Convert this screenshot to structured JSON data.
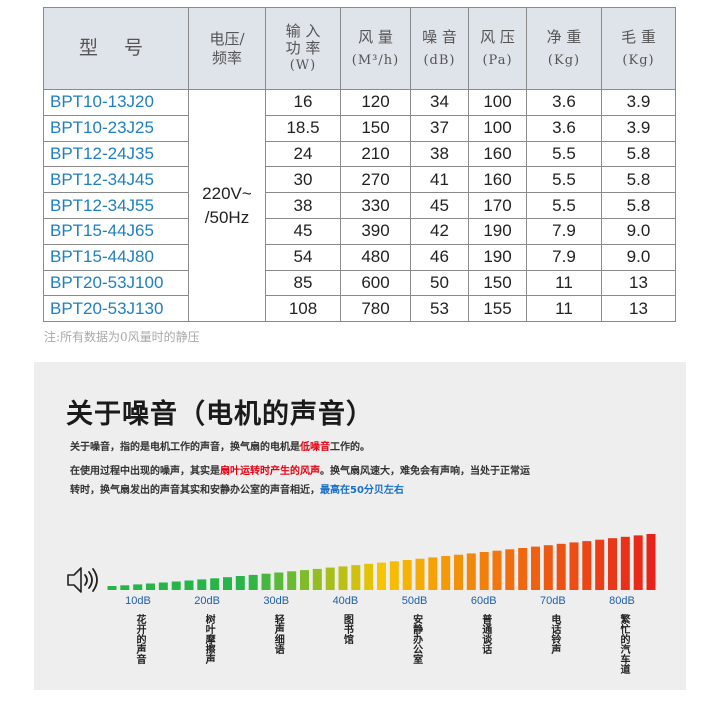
{
  "table": {
    "headers": {
      "model": "型 号",
      "voltage_line1": "电压/",
      "voltage_line2": "频率",
      "power_line1": "输 入",
      "power_line2": "功 率",
      "power_unit": "(W)",
      "airflow": "风 量",
      "airflow_unit": "(M³/h)",
      "noise": "噪 音",
      "noise_unit": "(dB)",
      "pressure": "风 压",
      "pressure_unit": "(Pa)",
      "net_weight": "净 重",
      "net_weight_unit": "(Kg)",
      "gross_weight": "毛 重",
      "gross_weight_unit": "(Kg)"
    },
    "voltage_value_line1": "220V~",
    "voltage_value_line2": "/50Hz",
    "rows": [
      {
        "model": "BPT10-13J20",
        "power": "16",
        "airflow": "120",
        "noise": "34",
        "pressure": "100",
        "net": "3.6",
        "gross": "3.9"
      },
      {
        "model": "BPT10-23J25",
        "power": "18.5",
        "airflow": "150",
        "noise": "37",
        "pressure": "100",
        "net": "3.6",
        "gross": "3.9"
      },
      {
        "model": "BPT12-24J35",
        "power": "24",
        "airflow": "210",
        "noise": "38",
        "pressure": "160",
        "net": "5.5",
        "gross": "5.8"
      },
      {
        "model": "BPT12-34J45",
        "power": "30",
        "airflow": "270",
        "noise": "41",
        "pressure": "160",
        "net": "5.5",
        "gross": "5.8"
      },
      {
        "model": "BPT12-34J55",
        "power": "38",
        "airflow": "330",
        "noise": "45",
        "pressure": "170",
        "net": "5.5",
        "gross": "5.8"
      },
      {
        "model": "BPT15-44J65",
        "power": "45",
        "airflow": "390",
        "noise": "42",
        "pressure": "190",
        "net": "7.9",
        "gross": "9.0"
      },
      {
        "model": "BPT15-44J80",
        "power": "54",
        "airflow": "480",
        "noise": "46",
        "pressure": "190",
        "net": "7.9",
        "gross": "9.0"
      },
      {
        "model": "BPT20-53J100",
        "power": "85",
        "airflow": "600",
        "noise": "50",
        "pressure": "150",
        "net": "11",
        "gross": "13"
      },
      {
        "model": "BPT20-53J130",
        "power": "108",
        "airflow": "780",
        "noise": "53",
        "pressure": "155",
        "net": "11",
        "gross": "13"
      }
    ]
  },
  "footnote": "注:所有数据为0风量时的静压",
  "noise_section": {
    "title": "关于噪音（电机的声音）",
    "para1_a": "关于噪音，指的是电机工作的声音，换气扇的电机是",
    "para1_hl": "低噪音",
    "para1_b": "工作的。",
    "para2_a": "在使用过程中出现的噪声，其实是",
    "para2_hl": "扇叶运转时产生的风声",
    "para2_b": "。换气扇风速大，难免会有声响，当处于正常运",
    "para3_a": "转时，换气扇发出的声音其实和安静办公室的声音相近，",
    "para3_hl": "最高在50分贝左右",
    "icon": "speaker-icon",
    "colors": {
      "low": "#27b54a",
      "mid": "#f7c400",
      "high": "#f06a10",
      "max": "#e8231a",
      "db_label": "#1e5fa8",
      "highlight_red": "#e60012",
      "highlight_blue": "#1a6fc8"
    },
    "bar_count": 43,
    "scale": [
      {
        "db": "10dB",
        "desc": "花开的声音"
      },
      {
        "db": "20dB",
        "desc": "树叶摩擦声"
      },
      {
        "db": "30dB",
        "desc": "轻声细语"
      },
      {
        "db": "40dB",
        "desc": "图书馆"
      },
      {
        "db": "50dB",
        "desc": "安静办公室"
      },
      {
        "db": "60dB",
        "desc": "普通谈话"
      },
      {
        "db": "70dB",
        "desc": "电话铃声"
      },
      {
        "db": "80dB",
        "desc": "繁忙的汽车道"
      }
    ]
  }
}
